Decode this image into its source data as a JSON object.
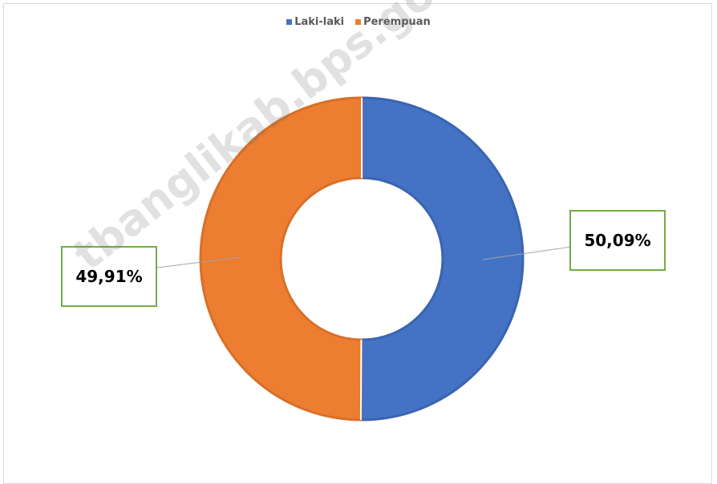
{
  "chart_data": {
    "type": "pie",
    "variant": "donut",
    "title": "",
    "categories": [
      "Laki-laki",
      "Perempuan"
    ],
    "values": [
      50.09,
      49.91
    ],
    "value_labels": [
      "50,09%",
      "49,91%"
    ],
    "colors": [
      "#4472c4",
      "#ed7d31"
    ],
    "legend_position": "top-center"
  },
  "legend": {
    "items": [
      {
        "label": "Laki-laki",
        "color": "#4472c4"
      },
      {
        "label": "Perempuan",
        "color": "#ed7d31"
      }
    ]
  },
  "watermark": {
    "text": "tbanglikab.bps.go.id"
  }
}
